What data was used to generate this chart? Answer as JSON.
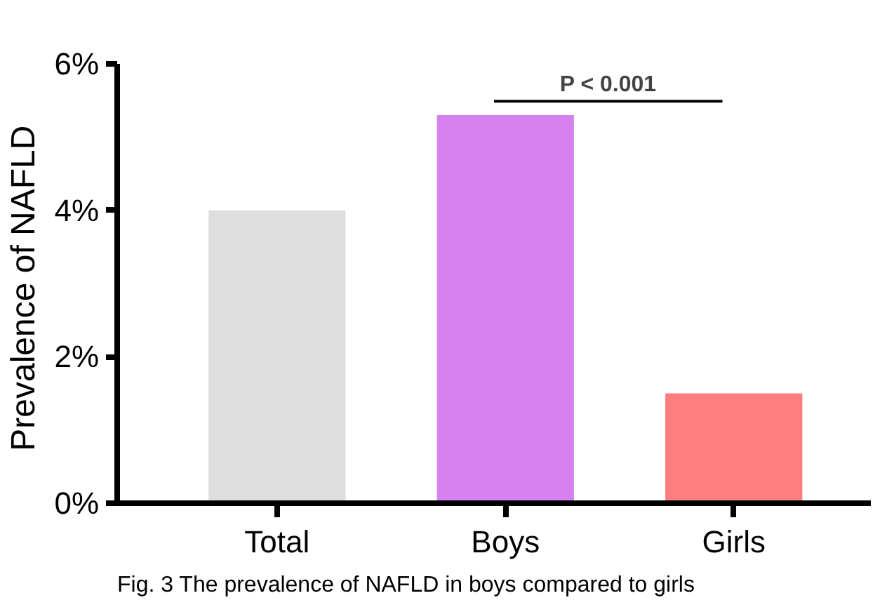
{
  "chart_data": {
    "type": "bar",
    "ylabel": "Prevalence of  NAFLD",
    "categories": [
      "Total",
      "Boys",
      "Girls"
    ],
    "values": [
      4.0,
      5.3,
      1.5
    ],
    "colors": [
      "#dedede",
      "#d580ef",
      "#fc7e7e"
    ],
    "ylim": [
      0,
      6
    ],
    "yticks": [
      {
        "value": 0,
        "label": "0%"
      },
      {
        "value": 2,
        "label": "2%"
      },
      {
        "value": 4,
        "label": "4%"
      },
      {
        "value": 6,
        "label": "6%"
      }
    ],
    "grid": false,
    "annotations": [
      "P < 0.001",
      "Fig. 3 The prevalence of NAFLD in boys compared to girls"
    ]
  }
}
